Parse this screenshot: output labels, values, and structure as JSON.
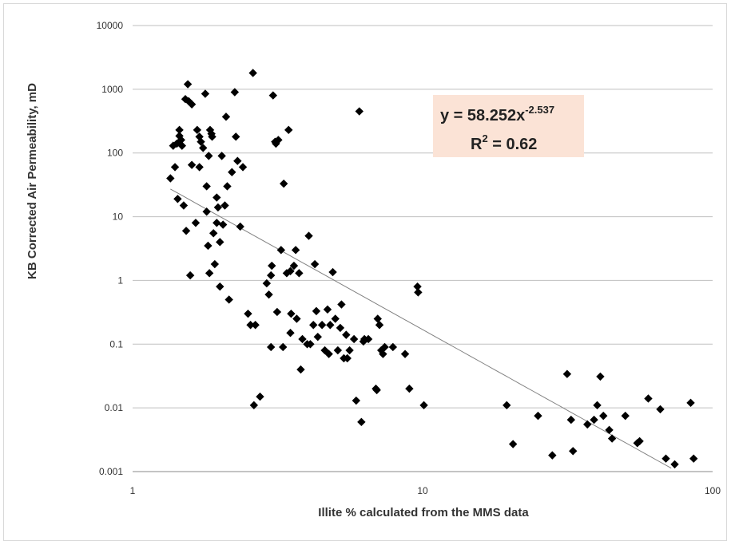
{
  "chart_data": {
    "type": "scatter",
    "title": "",
    "xlabel": "Illite % calculated from the MMS data",
    "ylabel": "KB Corrected Air Permeability, mD",
    "x_scale": "log",
    "y_scale": "log",
    "xlim": [
      1,
      100
    ],
    "ylim": [
      0.001,
      10000
    ],
    "x_ticks": [
      "1",
      "10",
      "100"
    ],
    "y_ticks": [
      "0.001",
      "0.01",
      "0.1",
      "1",
      "10",
      "100",
      "1000",
      "10000"
    ],
    "grid": "horizontal",
    "marker_color": "#000000",
    "trendline": {
      "type": "power",
      "a": 58.252,
      "b": -2.537,
      "x_range": [
        1.35,
        72
      ],
      "color": "#808080",
      "equation_prefix": "y = 58.252x",
      "equation_exponent": "-2.537",
      "r2_prefix": "R",
      "r2_exponent": "2",
      "r2_suffix": " = 0.62",
      "box_color": "#fbe3d6"
    },
    "points": [
      [
        1.35,
        40
      ],
      [
        1.38,
        130
      ],
      [
        1.4,
        60
      ],
      [
        1.42,
        140
      ],
      [
        1.43,
        19
      ],
      [
        1.45,
        230
      ],
      [
        1.45,
        185
      ],
      [
        1.47,
        160
      ],
      [
        1.48,
        130
      ],
      [
        1.5,
        15
      ],
      [
        1.52,
        700
      ],
      [
        1.53,
        6
      ],
      [
        1.55,
        1200
      ],
      [
        1.56,
        650
      ],
      [
        1.58,
        1.2
      ],
      [
        1.6,
        580
      ],
      [
        1.6,
        65
      ],
      [
        1.65,
        8
      ],
      [
        1.67,
        230
      ],
      [
        1.7,
        180
      ],
      [
        1.7,
        60
      ],
      [
        1.72,
        150
      ],
      [
        1.75,
        120
      ],
      [
        1.78,
        850
      ],
      [
        1.8,
        30
      ],
      [
        1.8,
        12
      ],
      [
        1.82,
        3.5
      ],
      [
        1.83,
        90
      ],
      [
        1.84,
        1.3
      ],
      [
        1.85,
        230
      ],
      [
        1.87,
        200
      ],
      [
        1.88,
        180
      ],
      [
        1.9,
        5.5
      ],
      [
        1.92,
        1.8
      ],
      [
        1.95,
        20
      ],
      [
        1.95,
        8
      ],
      [
        1.97,
        14
      ],
      [
        2.0,
        0.8
      ],
      [
        2.0,
        4
      ],
      [
        2.03,
        90
      ],
      [
        2.05,
        7.5
      ],
      [
        2.08,
        15
      ],
      [
        2.1,
        370
      ],
      [
        2.12,
        30
      ],
      [
        2.15,
        0.5
      ],
      [
        2.2,
        50
      ],
      [
        2.25,
        900
      ],
      [
        2.27,
        180
      ],
      [
        2.3,
        75
      ],
      [
        2.35,
        7
      ],
      [
        2.4,
        60
      ],
      [
        2.5,
        0.3
      ],
      [
        2.55,
        0.2
      ],
      [
        2.6,
        1800
      ],
      [
        2.65,
        0.2
      ],
      [
        2.62,
        0.011
      ],
      [
        2.75,
        0.015
      ],
      [
        2.9,
        0.9
      ],
      [
        2.95,
        0.6
      ],
      [
        3.0,
        0.09
      ],
      [
        3.0,
        1.2
      ],
      [
        3.02,
        1.7
      ],
      [
        3.05,
        800
      ],
      [
        3.1,
        150
      ],
      [
        3.12,
        140
      ],
      [
        3.15,
        0.32
      ],
      [
        3.18,
        160
      ],
      [
        3.25,
        3
      ],
      [
        3.3,
        0.09
      ],
      [
        3.32,
        33
      ],
      [
        3.4,
        1.3
      ],
      [
        3.45,
        230
      ],
      [
        3.5,
        1.4
      ],
      [
        3.5,
        0.15
      ],
      [
        3.52,
        0.3
      ],
      [
        3.6,
        1.7
      ],
      [
        3.65,
        3
      ],
      [
        3.68,
        0.25
      ],
      [
        3.75,
        1.3
      ],
      [
        3.8,
        0.04
      ],
      [
        3.85,
        0.12
      ],
      [
        4.0,
        0.1
      ],
      [
        4.05,
        5
      ],
      [
        4.1,
        0.1
      ],
      [
        4.2,
        0.2
      ],
      [
        4.25,
        1.8
      ],
      [
        4.3,
        0.33
      ],
      [
        4.35,
        0.13
      ],
      [
        4.5,
        0.2
      ],
      [
        4.6,
        0.08
      ],
      [
        4.7,
        0.35
      ],
      [
        4.75,
        0.07
      ],
      [
        4.8,
        0.2
      ],
      [
        4.9,
        1.35
      ],
      [
        5.0,
        0.25
      ],
      [
        5.1,
        0.08
      ],
      [
        5.2,
        0.18
      ],
      [
        5.25,
        0.42
      ],
      [
        5.35,
        0.06
      ],
      [
        5.45,
        0.14
      ],
      [
        5.5,
        0.06
      ],
      [
        5.6,
        0.08
      ],
      [
        5.8,
        0.12
      ],
      [
        5.9,
        0.013
      ],
      [
        6.05,
        450
      ],
      [
        6.15,
        0.006
      ],
      [
        6.25,
        0.11
      ],
      [
        6.3,
        0.12
      ],
      [
        6.5,
        0.12
      ],
      [
        6.9,
        0.02
      ],
      [
        6.95,
        0.019
      ],
      [
        7.0,
        0.25
      ],
      [
        7.1,
        0.2
      ],
      [
        7.2,
        0.08
      ],
      [
        7.3,
        0.07
      ],
      [
        7.4,
        0.09
      ],
      [
        7.9,
        0.09
      ],
      [
        8.7,
        0.07
      ],
      [
        9.0,
        0.02
      ],
      [
        9.6,
        0.8
      ],
      [
        9.65,
        0.65
      ],
      [
        10.1,
        0.011
      ],
      [
        19.5,
        0.011
      ],
      [
        20.5,
        0.0027
      ],
      [
        25,
        0.0075
      ],
      [
        28,
        0.0018
      ],
      [
        31.5,
        0.034
      ],
      [
        32.5,
        0.0065
      ],
      [
        33,
        0.0021
      ],
      [
        37,
        0.0055
      ],
      [
        39,
        0.0065
      ],
      [
        40,
        0.011
      ],
      [
        41,
        0.031
      ],
      [
        42,
        0.0075
      ],
      [
        44,
        0.0045
      ],
      [
        45,
        0.0033
      ],
      [
        50,
        0.0075
      ],
      [
        55,
        0.0028
      ],
      [
        56,
        0.003
      ],
      [
        60,
        0.014
      ],
      [
        66,
        0.0095
      ],
      [
        69,
        0.0016
      ],
      [
        74,
        0.0013
      ],
      [
        84,
        0.012
      ],
      [
        86,
        0.0016
      ]
    ]
  }
}
